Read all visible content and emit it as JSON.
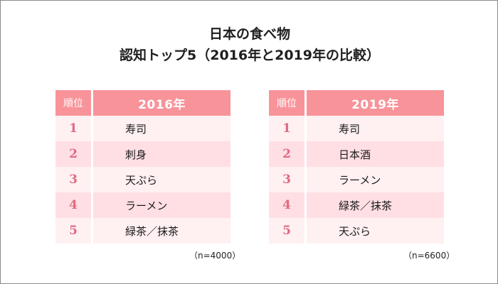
{
  "title": {
    "line1": "日本の食べ物",
    "line2": "認知トップ5（2016年と2019年の比較）"
  },
  "colors": {
    "header_bg": "#f8939a",
    "row_light": "#fff0f2",
    "row_dark": "#ffdfe4",
    "rank_color": "#e06a80",
    "frame_border": "#8a8a8a"
  },
  "tables": [
    {
      "rank_header": "順位",
      "year_header": "2016年",
      "rows": [
        {
          "rank": "1",
          "item": "寿司"
        },
        {
          "rank": "2",
          "item": "刺身"
        },
        {
          "rank": "3",
          "item": "天ぷら"
        },
        {
          "rank": "4",
          "item": "ラーメン"
        },
        {
          "rank": "5",
          "item": "緑茶／抹茶"
        }
      ],
      "note": "（n=4000）"
    },
    {
      "rank_header": "順位",
      "year_header": "2019年",
      "rows": [
        {
          "rank": "1",
          "item": "寿司"
        },
        {
          "rank": "2",
          "item": "日本酒"
        },
        {
          "rank": "3",
          "item": "ラーメン"
        },
        {
          "rank": "4",
          "item": "緑茶／抹茶"
        },
        {
          "rank": "5",
          "item": "天ぷら"
        }
      ],
      "note": "（n=6600）"
    }
  ]
}
